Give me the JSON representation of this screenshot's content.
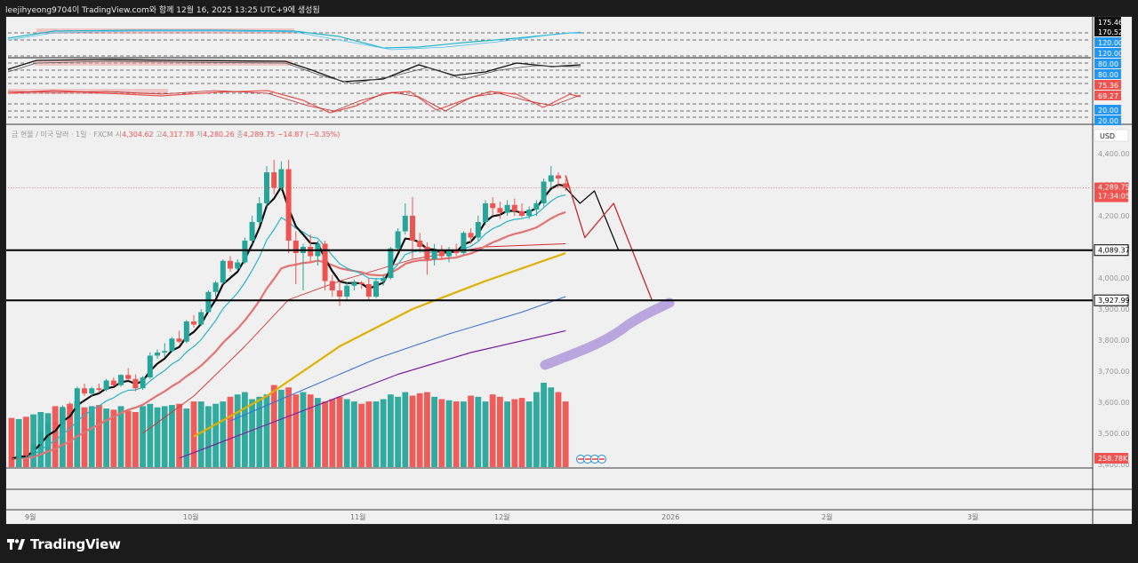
{
  "header": {
    "text": "leejihyeong9704이 TradingView.com와 함께 12월 16, 2025 13:25 UTC+9에 생성됨"
  },
  "brand": {
    "name": "TradingView"
  },
  "colors": {
    "up": "#26a69a",
    "down": "#ef5350",
    "ema_fast": "#111111",
    "ema_cyan": "#26b5c8",
    "ema_pink": "#e57373",
    "ema_thin_red": "#d32f2f",
    "ema_gold": "#e0b000",
    "ema_blue": "#3a6fd8",
    "ema_purple": "#7b1fa2",
    "projection": "#b39ddb"
  },
  "main_chart": {
    "symbol_text": "금 현물 / 미국 달러 · 1일 · FXCM",
    "ohlc": {
      "o_label": "시",
      "o": "4,304.62",
      "h_label": "고",
      "h": "4,317.78",
      "l_label": "저",
      "l": "4,280.26",
      "c_label": "종",
      "c": "4,289.75",
      "change": "−14.87 (−0.35%)"
    },
    "currency": "USD",
    "price_ticks": [
      "4,400.00",
      "4,300.00",
      "4,200.00",
      "4,100.00",
      "4,000.00",
      "3,900.00",
      "3,800.00",
      "3,700.00",
      "3,600.00",
      "3,500.00",
      "3,400.00"
    ],
    "last_price_label": "4,289.75",
    "countdown_label": "17:34:05",
    "level_labels": [
      "4,089.37",
      "3,927.99"
    ],
    "volume_label": "258.78K",
    "time_labels": [
      "9월",
      "10월",
      "11월",
      "12월",
      "2026",
      "2월",
      "3월"
    ]
  },
  "indicator_panel": {
    "labels": [
      "175.46",
      "170.52",
      "120.00",
      "120.00",
      "80.00",
      "80.00",
      "75.36",
      "69.27",
      "20.00",
      "20.00"
    ]
  },
  "chart_data": {
    "type": "candlestick",
    "title": "금 현물 / 미국 달러 · 1일 · FXCM",
    "ylabel": "USD",
    "ylim": [
      3400,
      4450
    ],
    "candles": [
      [
        3420,
        3425,
        3408,
        3418
      ],
      [
        3418,
        3438,
        3412,
        3435
      ],
      [
        3435,
        3445,
        3420,
        3428
      ],
      [
        3428,
        3470,
        3425,
        3465
      ],
      [
        3465,
        3510,
        3460,
        3505
      ],
      [
        3505,
        3540,
        3495,
        3535
      ],
      [
        3535,
        3545,
        3520,
        3528
      ],
      [
        3528,
        3590,
        3525,
        3585
      ],
      [
        3585,
        3600,
        3570,
        3578
      ],
      [
        3578,
        3650,
        3575,
        3645
      ],
      [
        3645,
        3660,
        3620,
        3628
      ],
      [
        3628,
        3650,
        3620,
        3645
      ],
      [
        3645,
        3660,
        3630,
        3640
      ],
      [
        3640,
        3675,
        3635,
        3670
      ],
      [
        3670,
        3680,
        3650,
        3655
      ],
      [
        3655,
        3690,
        3650,
        3688
      ],
      [
        3688,
        3710,
        3670,
        3675
      ],
      [
        3675,
        3690,
        3635,
        3645
      ],
      [
        3645,
        3685,
        3640,
        3680
      ],
      [
        3680,
        3760,
        3675,
        3750
      ],
      [
        3750,
        3770,
        3740,
        3760
      ],
      [
        3760,
        3790,
        3745,
        3765
      ],
      [
        3765,
        3810,
        3760,
        3805
      ],
      [
        3805,
        3830,
        3790,
        3795
      ],
      [
        3795,
        3865,
        3790,
        3860
      ],
      [
        3860,
        3880,
        3840,
        3850
      ],
      [
        3850,
        3900,
        3845,
        3890
      ],
      [
        3890,
        3960,
        3885,
        3955
      ],
      [
        3955,
        3990,
        3940,
        3985
      ],
      [
        3985,
        4060,
        3980,
        4055
      ],
      [
        4055,
        4070,
        4020,
        4030
      ],
      [
        4030,
        4060,
        4025,
        4050
      ],
      [
        4050,
        4130,
        4045,
        4120
      ],
      [
        4120,
        4200,
        4110,
        4180
      ],
      [
        4180,
        4260,
        4170,
        4240
      ],
      [
        4240,
        4360,
        4230,
        4340
      ],
      [
        4340,
        4380,
        4270,
        4290
      ],
      [
        4290,
        4375,
        4280,
        4350
      ],
      [
        4350,
        4380,
        4080,
        4120
      ],
      [
        4120,
        4150,
        3980,
        4080
      ],
      [
        4080,
        4110,
        3960,
        4100
      ],
      [
        4100,
        4140,
        4050,
        4070
      ],
      [
        4070,
        4120,
        4040,
        4110
      ],
      [
        4110,
        4120,
        3960,
        3990
      ],
      [
        3990,
        4010,
        3940,
        3960
      ],
      [
        3960,
        3990,
        3910,
        3940
      ],
      [
        3940,
        3985,
        3930,
        3975
      ],
      [
        3975,
        3995,
        3960,
        3985
      ],
      [
        3985,
        3990,
        3965,
        3980
      ],
      [
        3980,
        4000,
        3930,
        3940
      ],
      [
        3940,
        4000,
        3935,
        3990
      ],
      [
        3990,
        4010,
        3975,
        4000
      ],
      [
        4000,
        4100,
        3995,
        4095
      ],
      [
        4095,
        4160,
        4090,
        4150
      ],
      [
        4150,
        4240,
        4140,
        4200
      ],
      [
        4200,
        4260,
        4060,
        4120
      ],
      [
        4120,
        4145,
        4080,
        4100
      ],
      [
        4100,
        4115,
        4010,
        4060
      ],
      [
        4060,
        4110,
        4040,
        4090
      ],
      [
        4090,
        4105,
        4060,
        4070
      ],
      [
        4070,
        4100,
        4050,
        4090
      ],
      [
        4090,
        4110,
        4070,
        4080
      ],
      [
        4080,
        4150,
        4075,
        4145
      ],
      [
        4145,
        4160,
        4110,
        4130
      ],
      [
        4130,
        4200,
        4120,
        4180
      ],
      [
        4180,
        4250,
        4170,
        4240
      ],
      [
        4240,
        4260,
        4200,
        4225
      ],
      [
        4225,
        4245,
        4190,
        4210
      ],
      [
        4210,
        4250,
        4200,
        4235
      ],
      [
        4235,
        4255,
        4200,
        4215
      ],
      [
        4215,
        4240,
        4195,
        4200
      ],
      [
        4200,
        4230,
        4190,
        4220
      ],
      [
        4220,
        4250,
        4200,
        4240
      ],
      [
        4240,
        4320,
        4230,
        4310
      ],
      [
        4310,
        4360,
        4290,
        4330
      ],
      [
        4330,
        4340,
        4290,
        4320
      ],
      [
        4304.62,
        4317.78,
        4280.26,
        4289.75
      ]
    ],
    "volume": [
      420,
      410,
      430,
      450,
      470,
      460,
      520,
      500,
      540,
      560,
      510,
      520,
      530,
      500,
      490,
      520,
      480,
      470,
      520,
      540,
      510,
      520,
      530,
      540,
      500,
      560,
      560,
      520,
      540,
      560,
      600,
      620,
      640,
      580,
      600,
      620,
      700,
      660,
      680,
      620,
      640,
      620,
      590,
      560,
      580,
      600,
      580,
      560,
      540,
      560,
      560,
      580,
      620,
      600,
      640,
      610,
      630,
      640,
      600,
      580,
      570,
      560,
      560,
      610,
      600,
      560,
      620,
      600,
      560,
      580,
      590,
      560,
      640,
      720,
      680,
      640,
      560
    ],
    "projection_black": [
      [
        4289.75,
        0
      ],
      [
        4240,
        3
      ],
      [
        4280,
        6
      ],
      [
        4090,
        11
      ]
    ],
    "projection_red": [
      [
        4330,
        0
      ],
      [
        4130,
        4
      ],
      [
        4240,
        10
      ],
      [
        3927.99,
        18
      ]
    ],
    "levels": [
      4089.37,
      3927.99
    ]
  }
}
